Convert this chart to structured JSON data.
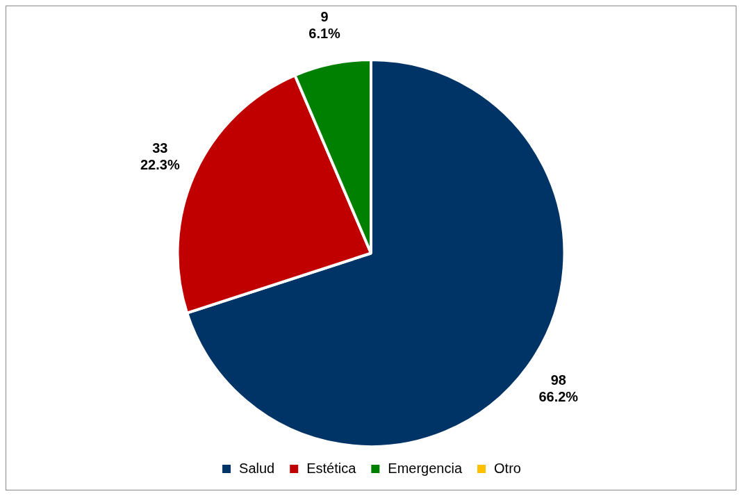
{
  "chart_data": {
    "type": "pie",
    "categories": [
      "Salud",
      "Estética",
      "Emergencia",
      "Otro"
    ],
    "values": [
      98,
      33,
      9,
      0
    ],
    "colors": [
      "#003366",
      "#c00000",
      "#008000",
      "#ffc000"
    ],
    "value_labels": [
      "98\n66.2%",
      "33\n22.3%",
      "9\n6.1%",
      null
    ],
    "legend": "bottom"
  }
}
